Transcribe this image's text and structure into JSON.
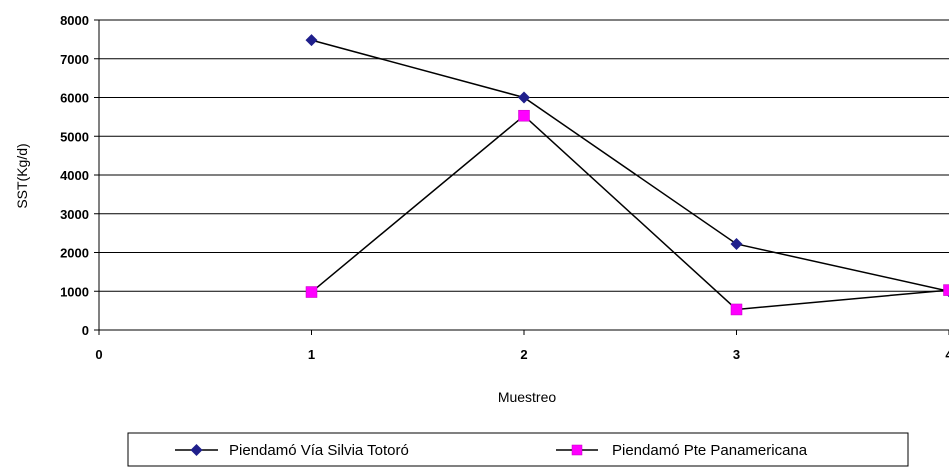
{
  "chart_data": {
    "type": "line",
    "title": "",
    "xlabel": "Muestreo",
    "ylabel": "SST(Kg/d)",
    "xlim": [
      0,
      4
    ],
    "ylim": [
      0,
      8000
    ],
    "x_ticks": [
      "0",
      "1",
      "2",
      "3",
      "4"
    ],
    "y_ticks": [
      "0",
      "1000",
      "2000",
      "3000",
      "4000",
      "5000",
      "6000",
      "7000",
      "8000"
    ],
    "grid": "horizontal",
    "legend_position": "bottom",
    "series": [
      {
        "name": "Piendamó Vía Silvia Totoró",
        "color": "#1f1f8c",
        "marker": "diamond",
        "x": [
          1,
          2,
          3,
          4
        ],
        "y": [
          7480,
          6000,
          2220,
          1000
        ]
      },
      {
        "name": "Piendamó Pte Panamericana",
        "color": "#ff00ff",
        "marker": "square",
        "x": [
          1,
          2,
          3,
          4
        ],
        "y": [
          980,
          5530,
          530,
          1030
        ]
      }
    ]
  }
}
